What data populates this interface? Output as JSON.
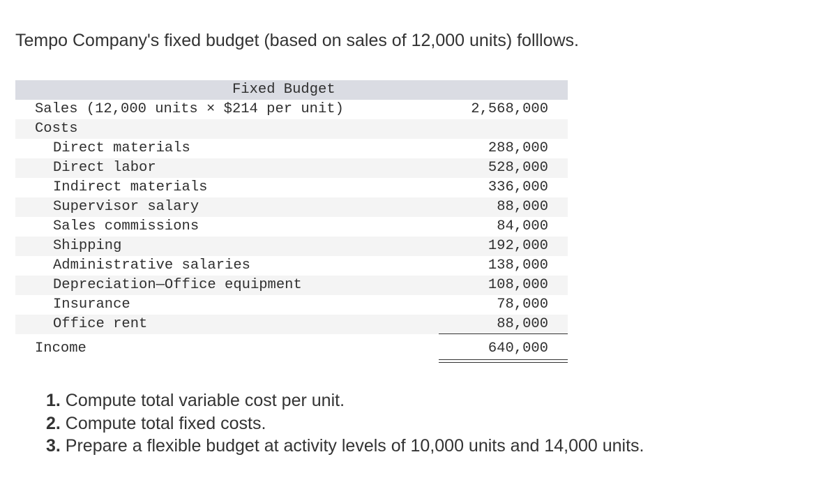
{
  "intro": "Tempo Company's fixed budget (based on sales of 12,000 units) folllows.",
  "table": {
    "header": "Fixed Budget",
    "sales": {
      "label": "Sales (12,000 units × $214 per unit)",
      "amount": "2,568,000"
    },
    "costs_label": "Costs",
    "costs": [
      {
        "label": "Direct materials",
        "amount": "288,000"
      },
      {
        "label": "Direct labor",
        "amount": "528,000"
      },
      {
        "label": "Indirect materials",
        "amount": "336,000"
      },
      {
        "label": "Supervisor salary",
        "amount": "88,000"
      },
      {
        "label": "Sales commissions",
        "amount": "84,000"
      },
      {
        "label": "Shipping",
        "amount": "192,000"
      },
      {
        "label": "Administrative salaries",
        "amount": "138,000"
      },
      {
        "label": "Depreciation—Office equipment",
        "amount": "108,000"
      },
      {
        "label": "Insurance",
        "amount": "78,000"
      },
      {
        "label": "Office rent",
        "amount": "88,000"
      }
    ],
    "income": {
      "label": "Income",
      "amount": "640,000"
    }
  },
  "questions": [
    {
      "num": "1.",
      "text": " Compute total variable cost per unit."
    },
    {
      "num": "2.",
      "text": " Compute total fixed costs."
    },
    {
      "num": "3.",
      "text": " Prepare a flexible budget at activity levels of 10,000 units and 14,000 units."
    }
  ]
}
